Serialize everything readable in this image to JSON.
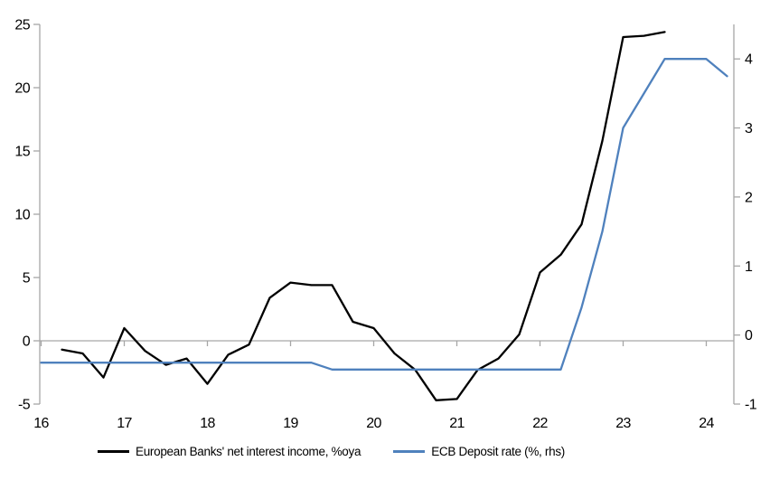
{
  "chart_data": {
    "type": "line",
    "title": "",
    "grid": "zero-line-only",
    "legend_position": "bottom",
    "x_axis": {
      "tick_labels": [
        "16",
        "17",
        "18",
        "19",
        "20",
        "21",
        "22",
        "23",
        "24"
      ],
      "start_year": 2016,
      "unit": "year"
    },
    "left_axis": {
      "range": [
        -5,
        25
      ],
      "ticks": [
        -5,
        0,
        5,
        10,
        15,
        20,
        25
      ],
      "tick_labels": [
        "-5",
        "0",
        "5",
        "10",
        "15",
        "20",
        "25"
      ]
    },
    "right_axis": {
      "range": [
        -1,
        4.5
      ],
      "ticks": [
        -1,
        0,
        1,
        2,
        3,
        4
      ],
      "tick_labels": [
        "-1",
        "0",
        "1",
        "2",
        "3",
        "4"
      ]
    },
    "series": [
      {
        "name": "European Banks' net interest income, %oya",
        "axis": "left",
        "color": "#000000",
        "x_start": 2016.25,
        "x_step": 0.25,
        "values": [
          -0.7,
          -1.0,
          -2.9,
          1.0,
          -0.8,
          -1.9,
          -1.4,
          -3.4,
          -1.1,
          -0.3,
          3.4,
          4.6,
          4.4,
          4.4,
          1.5,
          1.0,
          -1.0,
          -2.3,
          -4.7,
          -4.6,
          -2.3,
          -1.4,
          0.5,
          5.4,
          6.8,
          9.2,
          15.8,
          24.0,
          24.1,
          24.4
        ]
      },
      {
        "name": "ECB Deposit rate (%, rhs)",
        "axis": "right",
        "color": "#4f81bd",
        "x_start": 2016.0,
        "x_step": 0.25,
        "values": [
          -0.4,
          -0.4,
          -0.4,
          -0.4,
          -0.4,
          -0.4,
          -0.4,
          -0.4,
          -0.4,
          -0.4,
          -0.4,
          -0.4,
          -0.4,
          -0.4,
          -0.5,
          -0.5,
          -0.5,
          -0.5,
          -0.5,
          -0.5,
          -0.5,
          -0.5,
          -0.5,
          -0.5,
          -0.5,
          -0.5,
          0.4,
          1.5,
          3.0,
          3.5,
          4.0,
          4.0,
          4.0,
          3.75
        ]
      }
    ]
  },
  "colors": {
    "axis_gray": "#a6a6a6",
    "text": "#000000",
    "background": "#ffffff"
  }
}
